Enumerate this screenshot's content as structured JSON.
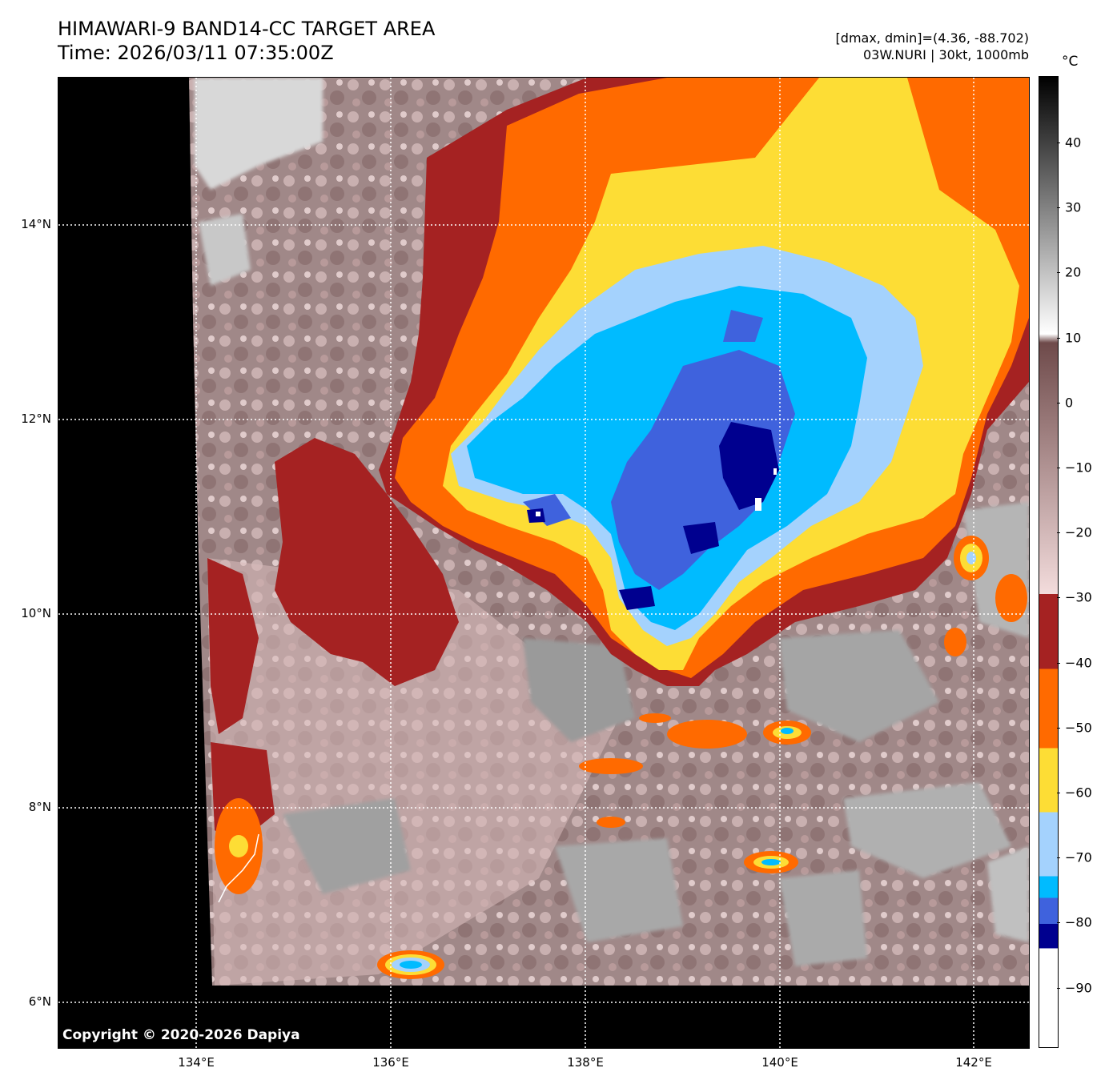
{
  "header": {
    "title_line1": "HIMAWARI-9 BAND14-CC TARGET AREA",
    "title_line2": "Time: 2026/03/11 07:35:00Z",
    "info_line1": "[dmax, dmin]=(4.36, -88.702)",
    "info_line2": "03W.NURI | 30kt, 1000mb"
  },
  "map": {
    "copyright": "Copyright © 2020-2026 Dapiya",
    "lat_labels": [
      "14°N",
      "12°N",
      "10°N",
      "8°N",
      "6°N"
    ],
    "lon_labels": [
      "134°E",
      "136°E",
      "138°E",
      "140°E",
      "142°E"
    ]
  },
  "colorbar": {
    "unit": "°C",
    "tick_labels": [
      "40",
      "30",
      "20",
      "10",
      "0",
      "−10",
      "−20",
      "−30",
      "−40",
      "−50",
      "−60",
      "−70",
      "−80",
      "−90"
    ],
    "colors": {
      "gray_warm": "#000000",
      "gray_cool": "#ffffff",
      "brown_warm": "#6e4a4a",
      "brown_cool": "#f3dcdc",
      "dark_red": "#a52222",
      "orange": "#ff6a00",
      "yellow": "#fddd35",
      "light_blue": "#a4d2fd",
      "cyan": "#00bbff",
      "royal_blue": "#3f62dd",
      "navy": "#00008f",
      "white": "#ffffff"
    }
  }
}
